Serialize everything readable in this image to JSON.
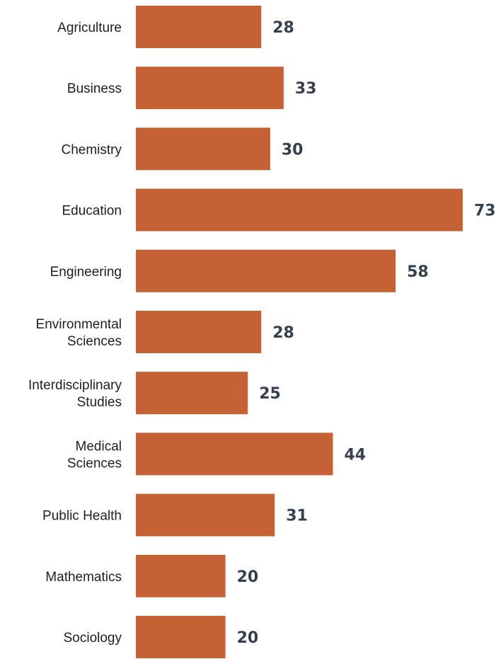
{
  "colors": {
    "bar": "#c46235",
    "value_label": "#36414f",
    "category_label": "#1f1f1f"
  },
  "chart_data": {
    "type": "bar",
    "orientation": "horizontal",
    "title": "",
    "xlabel": "",
    "ylabel": "",
    "categories": [
      [
        "Agriculture"
      ],
      [
        "Business"
      ],
      [
        "Chemistry"
      ],
      [
        "Education"
      ],
      [
        "Engineering"
      ],
      [
        "Environmental",
        "Sciences"
      ],
      [
        "Interdisciplinary",
        "Studies"
      ],
      [
        "Medical",
        "Sciences"
      ],
      [
        "Public Health"
      ],
      [
        "Mathematics"
      ],
      [
        "Sociology"
      ]
    ],
    "values": [
      28,
      33,
      30,
      73,
      58,
      28,
      25,
      44,
      31,
      20,
      20
    ],
    "xlim": [
      0,
      73
    ],
    "grid": false,
    "legend": "none",
    "data_labels": true
  }
}
